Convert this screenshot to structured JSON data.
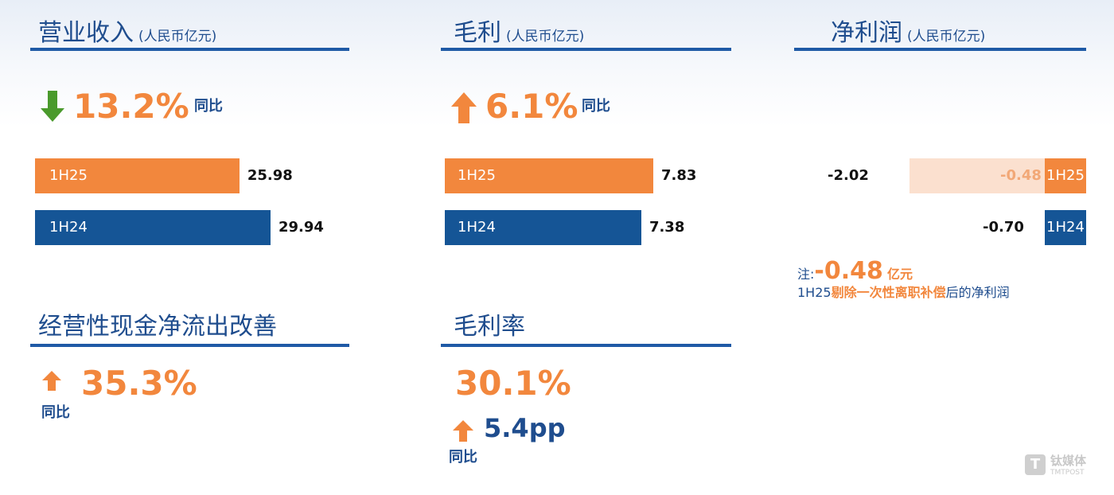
{
  "colors": {
    "orange": "#f2873d",
    "blue": "#155596",
    "peach": "#fbe0cf",
    "title_blue": "#1f4d8e"
  },
  "revenue": {
    "title": "营业收入",
    "unit": "(人民币亿元)",
    "change": "13.2%",
    "change_direction": "down",
    "change_label": "同比"
  },
  "gross_profit": {
    "title": "毛利",
    "unit": "(人民币亿元)",
    "change": "6.1%",
    "change_direction": "up",
    "change_label": "同比"
  },
  "net_profit": {
    "title": "净利润",
    "unit": "(人民币亿元)",
    "note_prefix": "注:",
    "note_value": "-0.48",
    "note_unit": "亿元",
    "note_line2_a": "1H25",
    "note_line2_b": "剔除一次性离职补偿",
    "note_line2_c": "后的净利润"
  },
  "cashflow": {
    "title": "经营性现金净流出改善",
    "change": "35.3%",
    "change_direction": "up",
    "change_label": "同比"
  },
  "gross_margin": {
    "title": "毛利率",
    "value": "30.1%",
    "change": "5.4pp",
    "change_direction": "up",
    "change_label": "同比"
  },
  "watermark": {
    "cn": "钛媒体",
    "en": "TMTPOST"
  },
  "chart_data": [
    {
      "type": "bar",
      "title": "营业收入",
      "categories": [
        "1H25",
        "1H24"
      ],
      "values": [
        25.98,
        29.94
      ],
      "value_labels": [
        "25.98",
        "29.94"
      ],
      "colors": [
        "#f2873d",
        "#155596"
      ],
      "orientation": "horizontal"
    },
    {
      "type": "bar",
      "title": "毛利",
      "categories": [
        "1H25",
        "1H24"
      ],
      "values": [
        7.83,
        7.38
      ],
      "value_labels": [
        "7.83",
        "7.38"
      ],
      "colors": [
        "#f2873d",
        "#155596"
      ],
      "orientation": "horizontal"
    },
    {
      "type": "bar",
      "title": "净利润",
      "categories": [
        "1H25",
        "1H24"
      ],
      "values": [
        -2.02,
        -0.7
      ],
      "value_labels": [
        "-2.02",
        "-0.70"
      ],
      "adjusted_values": [
        -0.48,
        null
      ],
      "adjusted_labels": [
        "-0.48",
        ""
      ],
      "colors": [
        "#f2873d",
        "#155596"
      ],
      "orientation": "horizontal"
    }
  ]
}
